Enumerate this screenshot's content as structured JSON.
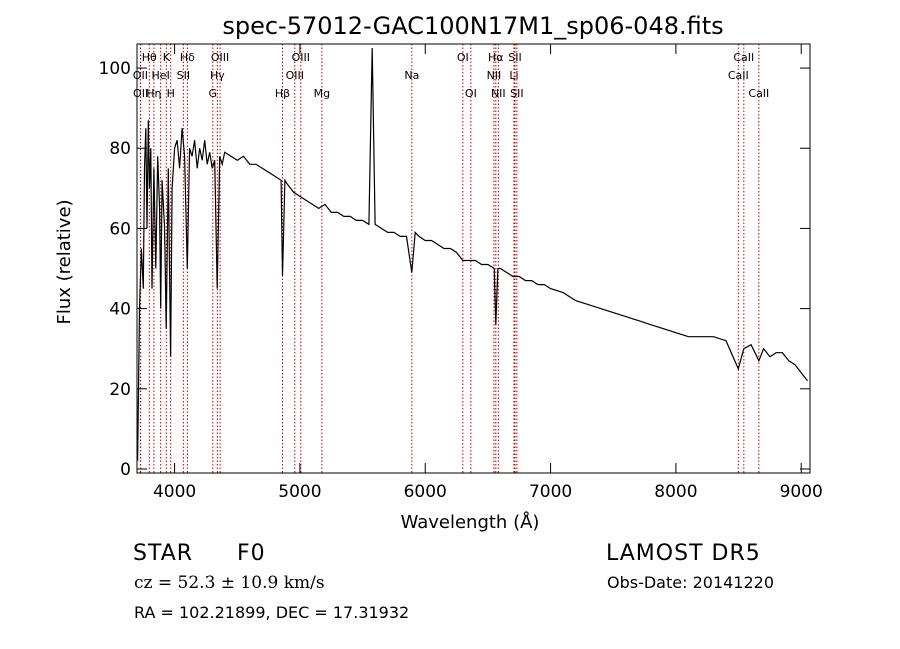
{
  "chart_data": {
    "type": "line",
    "title": "spec-57012-GAC100N17M1_sp06-048.fits",
    "xlabel": "Wavelength (Å)",
    "ylabel": "Flux (relative)",
    "xlim": [
      3700,
      9070
    ],
    "ylim": [
      -1,
      106
    ],
    "x_ticks": [
      4000,
      5000,
      6000,
      7000,
      8000,
      9000
    ],
    "y_ticks": [
      0,
      20,
      40,
      60,
      80,
      100
    ],
    "grid": false,
    "series": [
      {
        "x": [
          3705,
          3720,
          3735,
          3750,
          3760,
          3770,
          3780,
          3790,
          3800,
          3810,
          3820,
          3835,
          3850,
          3865,
          3880,
          3889,
          3900,
          3920,
          3933,
          3950,
          3968,
          3980,
          4000,
          4020,
          4040,
          4060,
          4080,
          4101,
          4120,
          4140,
          4160,
          4180,
          4200,
          4220,
          4240,
          4260,
          4280,
          4300,
          4320,
          4340,
          4360,
          4380,
          4400,
          4450,
          4500,
          4550,
          4600,
          4650,
          4700,
          4750,
          4800,
          4850,
          4861,
          4880,
          4900,
          4950,
          5000,
          5050,
          5100,
          5150,
          5200,
          5250,
          5300,
          5350,
          5400,
          5450,
          5500,
          5550,
          5577,
          5600,
          5650,
          5700,
          5750,
          5800,
          5850,
          5893,
          5920,
          5950,
          6000,
          6050,
          6100,
          6150,
          6200,
          6250,
          6300,
          6350,
          6400,
          6450,
          6500,
          6550,
          6563,
          6580,
          6600,
          6650,
          6700,
          6750,
          6800,
          6850,
          6900,
          6950,
          7000,
          7100,
          7200,
          7300,
          7400,
          7500,
          7600,
          7700,
          7800,
          7900,
          8000,
          8100,
          8200,
          8300,
          8400,
          8498,
          8542,
          8600,
          8662,
          8700,
          8750,
          8800,
          8850,
          8900,
          8950,
          9000,
          9050
        ],
        "y": [
          2,
          40,
          55,
          45,
          75,
          85,
          60,
          87,
          70,
          80,
          45,
          75,
          50,
          78,
          65,
          40,
          72,
          60,
          35,
          75,
          28,
          70,
          80,
          82,
          75,
          85,
          78,
          50,
          80,
          78,
          82,
          75,
          80,
          77,
          82,
          76,
          79,
          75,
          77,
          45,
          78,
          76,
          79,
          78,
          77,
          78,
          76,
          76,
          75,
          74,
          73,
          72,
          48,
          72,
          71,
          69,
          68,
          67,
          66,
          65,
          66,
          64,
          64,
          63,
          63,
          62,
          62,
          61,
          105,
          61,
          60,
          59,
          59,
          58,
          58,
          49,
          59,
          58,
          57,
          57,
          56,
          55,
          55,
          54,
          52,
          52,
          52,
          51,
          51,
          50,
          36,
          50,
          50,
          49,
          48,
          48,
          47,
          47,
          46,
          46,
          45,
          44,
          42,
          41,
          40,
          39,
          38,
          37,
          36,
          35,
          34,
          33,
          33,
          33,
          32,
          25,
          30,
          31,
          27,
          30,
          28,
          29,
          29,
          27,
          26,
          24,
          22
        ]
      }
    ],
    "line_markers": [
      {
        "label": "OII",
        "x": 3727,
        "tier": 1
      },
      {
        "label": "OII",
        "x": 3729,
        "tier": 2
      },
      {
        "label": "Hθ",
        "x": 3798,
        "tier": 0
      },
      {
        "label": "Hη",
        "x": 3835,
        "tier": 2
      },
      {
        "label": "HeI",
        "x": 3889,
        "tier": 1
      },
      {
        "label": "K",
        "x": 3934,
        "tier": 0
      },
      {
        "label": "H",
        "x": 3969,
        "tier": 2
      },
      {
        "label": "SII",
        "x": 4070,
        "tier": 1
      },
      {
        "label": "Hδ",
        "x": 4102,
        "tier": 0
      },
      {
        "label": "G",
        "x": 4305,
        "tier": 2
      },
      {
        "label": "Hγ",
        "x": 4341,
        "tier": 1
      },
      {
        "label": "OIII",
        "x": 4363,
        "tier": 0
      },
      {
        "label": "Hβ",
        "x": 4861,
        "tier": 2
      },
      {
        "label": "OIII",
        "x": 4959,
        "tier": 1
      },
      {
        "label": "OIII",
        "x": 5007,
        "tier": 0
      },
      {
        "label": "Mg",
        "x": 5175,
        "tier": 2
      },
      {
        "label": "Na",
        "x": 5893,
        "tier": 1
      },
      {
        "label": "OI",
        "x": 6300,
        "tier": 0
      },
      {
        "label": "OI",
        "x": 6364,
        "tier": 2
      },
      {
        "label": "NII",
        "x": 6548,
        "tier": 1
      },
      {
        "label": "Hα",
        "x": 6563,
        "tier": 0
      },
      {
        "label": "NII",
        "x": 6583,
        "tier": 2
      },
      {
        "label": "Li",
        "x": 6708,
        "tier": 1
      },
      {
        "label": "SII",
        "x": 6716,
        "tier": 0
      },
      {
        "label": "SII",
        "x": 6731,
        "tier": 2
      },
      {
        "label": "CaII",
        "x": 8498,
        "tier": 1
      },
      {
        "label": "CaII",
        "x": 8542,
        "tier": 0
      },
      {
        "label": "CaII",
        "x": 8662,
        "tier": 2
      }
    ],
    "colors": {
      "spectrum": "#000000",
      "markers": "#c00000"
    }
  },
  "info": {
    "object_class": "STAR",
    "subclass": "F0",
    "survey": "LAMOST DR5",
    "redshift": "cz = 52.3 ± 10.9 km/s",
    "obs_date": "Obs-Date: 20141220",
    "coords": "RA = 102.21899, DEC =  17.31932"
  }
}
